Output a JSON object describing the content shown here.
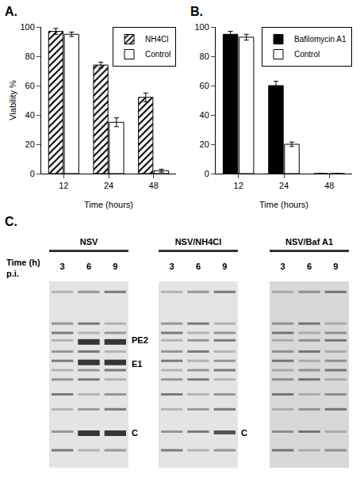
{
  "chart_data": [
    {
      "type": "bar",
      "panel": "A.",
      "y_label": "Viability %",
      "x_label": "Time (hours)",
      "categories": [
        "12",
        "24",
        "48"
      ],
      "series": [
        {
          "name": "NH4Cl",
          "color": "#ffffff",
          "marker": "hatched",
          "values": [
            97,
            74,
            52
          ],
          "errors": [
            2,
            2,
            3
          ]
        },
        {
          "name": "Control",
          "color": "#ffffff",
          "values": [
            95,
            35,
            2
          ],
          "errors": [
            1.5,
            3,
            1
          ]
        }
      ],
      "ylim": [
        0,
        100
      ],
      "yticks": [
        0,
        20,
        40,
        60,
        80,
        100
      ],
      "grid": false,
      "legend": "upper right"
    },
    {
      "type": "bar",
      "panel": "B.",
      "x_label": "Time (hours)",
      "categories": [
        "12",
        "24",
        "48"
      ],
      "series": [
        {
          "name": "Bafilomycin A1",
          "color": "#000000",
          "values": [
            95,
            60,
            0
          ],
          "errors": [
            2,
            3,
            0
          ]
        },
        {
          "name": "Control",
          "color": "#ffffff",
          "values": [
            93,
            20,
            0
          ],
          "errors": [
            2,
            1.5,
            0
          ]
        }
      ],
      "ylim": [
        0,
        100
      ],
      "yticks": [
        0,
        20,
        40,
        60,
        80,
        100
      ],
      "grid": false,
      "legend": "upper right"
    }
  ],
  "gel": {
    "panel": "C.",
    "row_label": [
      "Time (h)",
      "p.i."
    ],
    "gels": [
      {
        "title": "NSV",
        "lanes": [
          "3",
          "6",
          "9"
        ],
        "band_labels": [
          "PE2",
          "E1",
          "C"
        ]
      },
      {
        "title": "NSV/NH4Cl",
        "lanes": [
          "3",
          "6",
          "9"
        ],
        "band_labels": [
          "C"
        ]
      },
      {
        "title": "NSV/Baf A1",
        "lanes": [
          "3",
          "6",
          "9"
        ],
        "band_labels": []
      }
    ]
  }
}
